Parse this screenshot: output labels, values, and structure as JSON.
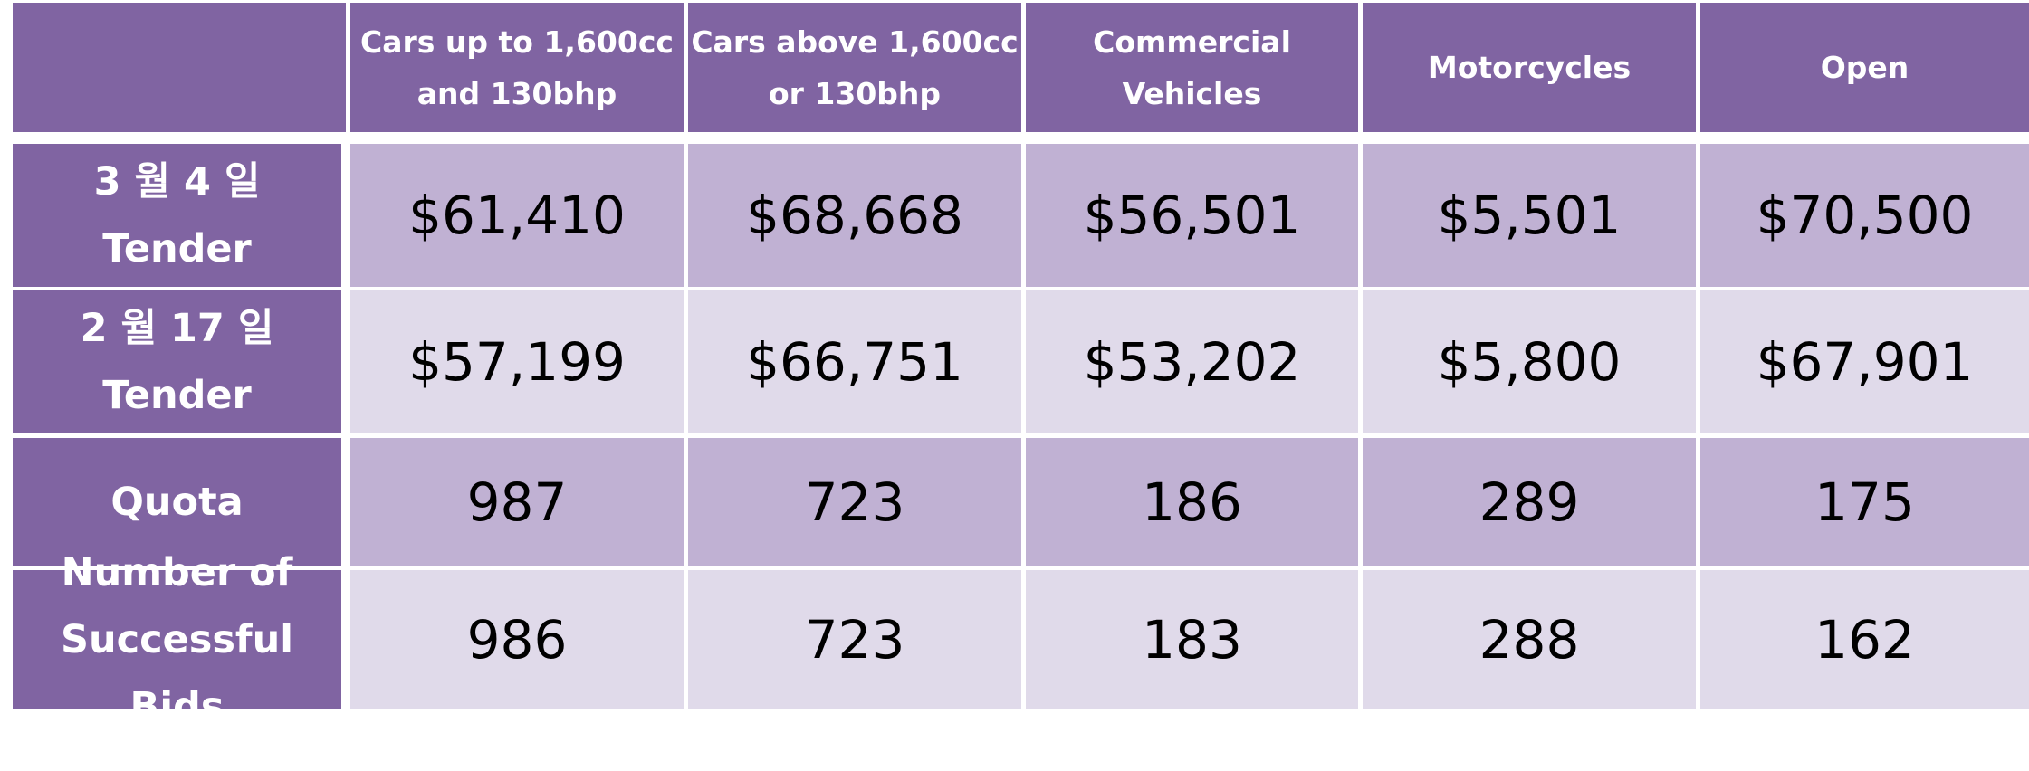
{
  "colors": {
    "header_bg": "#8064a2",
    "band_dark": "#c0b1d3",
    "band_light": "#e0daea",
    "header_text": "#ffffff",
    "value_text": "#000000"
  },
  "chart_data": {
    "type": "table",
    "columns": [
      "",
      "Cars up to 1,600cc\nand 130bhp",
      "Cars above 1,600cc\nor 130bhp",
      "Commercial\nVehicles",
      "Motorcycles",
      "Open"
    ],
    "rows": [
      {
        "label": "3 월 4 일\nTender",
        "values": [
          "$61,410",
          "$68,668",
          "$56,501",
          "$5,501",
          "$70,500"
        ]
      },
      {
        "label": "2 월 17 일\nTender",
        "values": [
          "$57,199",
          "$66,751",
          "$53,202",
          "$5,800",
          "$67,901"
        ]
      },
      {
        "label": "Quota",
        "values": [
          "987",
          "723",
          "186",
          "289",
          "175"
        ]
      },
      {
        "label": "Number of\nSuccessful Bids",
        "values": [
          "986",
          "723",
          "183",
          "288",
          "162"
        ]
      }
    ]
  }
}
